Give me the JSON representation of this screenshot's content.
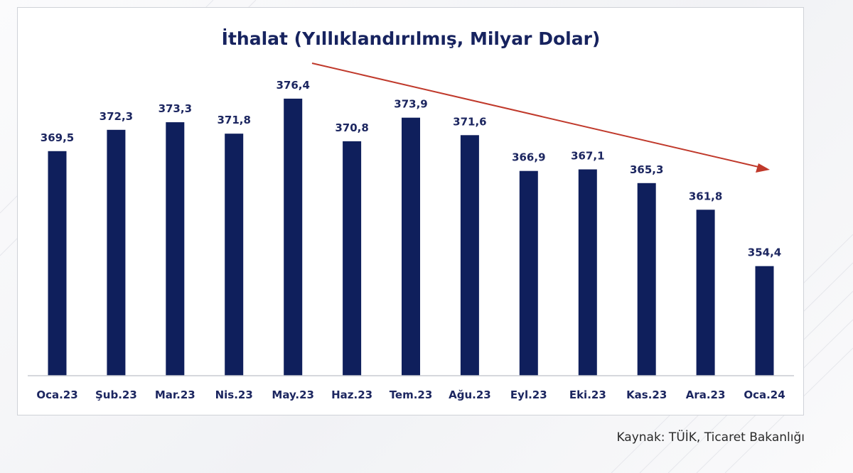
{
  "chart_data": {
    "type": "bar",
    "title": "İthalat (Yıllıklandırılmış, Milyar Dolar)",
    "xlabel": "",
    "ylabel": "",
    "categories": [
      "Oca.23",
      "Şub.23",
      "Mar.23",
      "Nis.23",
      "May.23",
      "Haz.23",
      "Tem.23",
      "Ağu.23",
      "Eyl.23",
      "Eki.23",
      "Kas.23",
      "Ara.23",
      "Oca.24"
    ],
    "values": [
      369.5,
      372.3,
      373.3,
      371.8,
      376.4,
      370.8,
      373.9,
      371.6,
      366.9,
      367.1,
      365.3,
      361.8,
      354.4
    ],
    "value_labels": [
      "369,5",
      "372,3",
      "373,3",
      "371,8",
      "376,4",
      "370,8",
      "373,9",
      "371,6",
      "366,9",
      "367,1",
      "365,3",
      "361,8",
      "354,4"
    ],
    "ylim": [
      340,
      379
    ],
    "grid": false,
    "legend": "none",
    "bar_color": "#0f1f5c",
    "trend_arrow_color": "#c0392b",
    "trend": "down"
  },
  "source_text": "Kaynak: TÜİK, Ticaret Bakanlığı"
}
